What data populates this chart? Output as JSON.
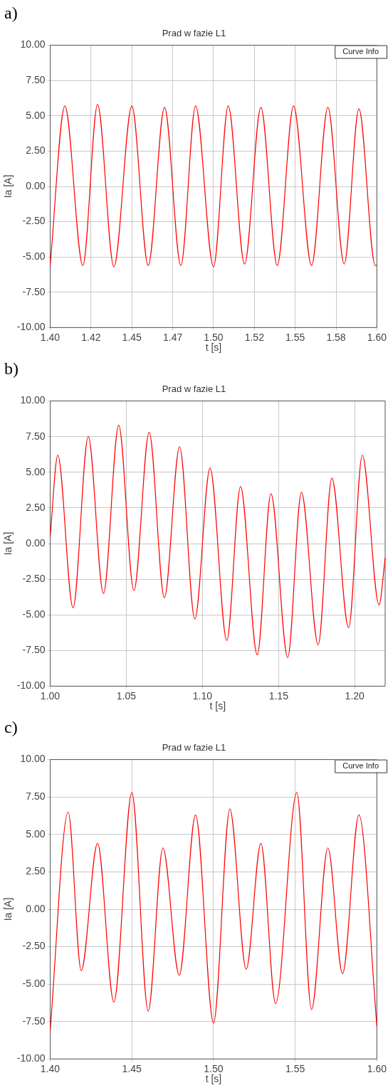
{
  "chart_data": [
    {
      "type": "line",
      "title": "Prad w fazie L1",
      "xlabel": "t [s]",
      "ylabel": "Ia [A]",
      "annotations": [
        "a)",
        "Curve Info"
      ],
      "x": [
        1.4,
        1.409,
        1.42,
        1.429,
        1.439,
        1.45,
        1.46,
        1.47,
        1.48,
        1.489,
        1.5,
        1.509,
        1.519,
        1.529,
        1.539,
        1.549,
        1.56,
        1.57,
        1.58,
        1.589,
        1.599,
        1.6
      ],
      "series": [
        {
          "color": "#ff0000",
          "values": [
            -5.6,
            5.7,
            -5.6,
            5.8,
            -5.7,
            5.7,
            -5.6,
            5.6,
            -5.6,
            5.7,
            -5.7,
            5.7,
            -5.5,
            5.6,
            -5.6,
            5.7,
            -5.6,
            5.6,
            -5.5,
            5.5,
            -5.6,
            -5.6
          ]
        }
      ],
      "xlim": [
        1.4,
        1.6
      ],
      "ylim": [
        -10,
        10
      ],
      "xticks": [
        {
          "value": 1.4,
          "label": "1.40"
        },
        {
          "value": 1.425,
          "label": "1.42"
        },
        {
          "value": 1.45,
          "label": "1.45"
        },
        {
          "value": 1.475,
          "label": "1.47"
        },
        {
          "value": 1.5,
          "label": "1.50"
        },
        {
          "value": 1.525,
          "label": "1.52"
        },
        {
          "value": 1.55,
          "label": "1.55"
        },
        {
          "value": 1.575,
          "label": "1.58"
        },
        {
          "value": 1.6,
          "label": "1.60"
        }
      ],
      "yticks": [
        {
          "value": -10,
          "label": "-10.00"
        },
        {
          "value": -7.5,
          "label": "-7.50"
        },
        {
          "value": -5,
          "label": "-5.00"
        },
        {
          "value": -2.5,
          "label": "-2.50"
        },
        {
          "value": 0,
          "label": "0.00"
        },
        {
          "value": 2.5,
          "label": "2.50"
        },
        {
          "value": 5,
          "label": "5.00"
        },
        {
          "value": 7.5,
          "label": "7.50"
        },
        {
          "value": 10,
          "label": "10.00"
        }
      ],
      "grid": true
    },
    {
      "type": "line",
      "title": "Prad w fazie L1",
      "xlabel": "t [s]",
      "ylabel": "Ia [A]",
      "annotations": [
        "b)"
      ],
      "x": [
        1.0,
        1.005,
        1.015,
        1.025,
        1.035,
        1.045,
        1.055,
        1.065,
        1.075,
        1.085,
        1.095,
        1.105,
        1.116,
        1.125,
        1.136,
        1.145,
        1.156,
        1.165,
        1.176,
        1.185,
        1.196,
        1.205,
        1.216,
        1.22
      ],
      "series": [
        {
          "color": "#ff0000",
          "values": [
            0.5,
            6.2,
            -4.5,
            7.5,
            -3.5,
            8.3,
            -3.3,
            7.8,
            -3.8,
            6.8,
            -5.3,
            5.3,
            -6.8,
            4.0,
            -7.8,
            3.5,
            -8.0,
            3.6,
            -7.1,
            4.6,
            -5.9,
            6.2,
            -4.3,
            -1.0
          ]
        }
      ],
      "xlim": [
        1.0,
        1.22
      ],
      "ylim": [
        -10,
        10
      ],
      "xticks": [
        {
          "value": 1.0,
          "label": "1.00"
        },
        {
          "value": 1.05,
          "label": "1.05"
        },
        {
          "value": 1.1,
          "label": "1.10"
        },
        {
          "value": 1.15,
          "label": "1.15"
        },
        {
          "value": 1.2,
          "label": "1.20"
        }
      ],
      "yticks": [
        {
          "value": -10,
          "label": "-10.00"
        },
        {
          "value": -7.5,
          "label": "-7.50"
        },
        {
          "value": -5,
          "label": "-5.00"
        },
        {
          "value": -2.5,
          "label": "-2.50"
        },
        {
          "value": 0,
          "label": "0.00"
        },
        {
          "value": 2.5,
          "label": "2.50"
        },
        {
          "value": 5,
          "label": "5.00"
        },
        {
          "value": 7.5,
          "label": "7.50"
        },
        {
          "value": 10,
          "label": "10.00"
        }
      ],
      "grid": true
    },
    {
      "type": "line",
      "title": "Prad w fazie L1",
      "xlabel": "t [s]",
      "ylabel": "Ia [A]",
      "annotations": [
        "c)",
        "Curve Info"
      ],
      "x": [
        1.4,
        1.411,
        1.419,
        1.429,
        1.439,
        1.45,
        1.46,
        1.469,
        1.479,
        1.489,
        1.5,
        1.51,
        1.52,
        1.529,
        1.538,
        1.551,
        1.56,
        1.57,
        1.579,
        1.589,
        1.6
      ],
      "series": [
        {
          "color": "#ff0000",
          "values": [
            -8.1,
            6.5,
            -4.1,
            4.4,
            -6.2,
            7.8,
            -6.8,
            4.1,
            -4.4,
            6.3,
            -7.6,
            6.7,
            -4.0,
            4.4,
            -6.3,
            7.8,
            -6.7,
            4.1,
            -4.3,
            6.3,
            -7.8
          ]
        }
      ],
      "xlim": [
        1.4,
        1.6
      ],
      "ylim": [
        -10,
        10
      ],
      "xticks": [
        {
          "value": 1.4,
          "label": "1.40"
        },
        {
          "value": 1.45,
          "label": "1.45"
        },
        {
          "value": 1.5,
          "label": "1.50"
        },
        {
          "value": 1.55,
          "label": "1.55"
        },
        {
          "value": 1.6,
          "label": "1.60"
        }
      ],
      "yticks": [
        {
          "value": -10,
          "label": "-10.00"
        },
        {
          "value": -7.5,
          "label": "-7.50"
        },
        {
          "value": -5,
          "label": "-5.00"
        },
        {
          "value": -2.5,
          "label": "-2.50"
        },
        {
          "value": 0,
          "label": "0.00"
        },
        {
          "value": 2.5,
          "label": "2.50"
        },
        {
          "value": 5,
          "label": "5.00"
        },
        {
          "value": 7.5,
          "label": "7.50"
        },
        {
          "value": 10,
          "label": "10.00"
        }
      ],
      "grid": true
    }
  ]
}
